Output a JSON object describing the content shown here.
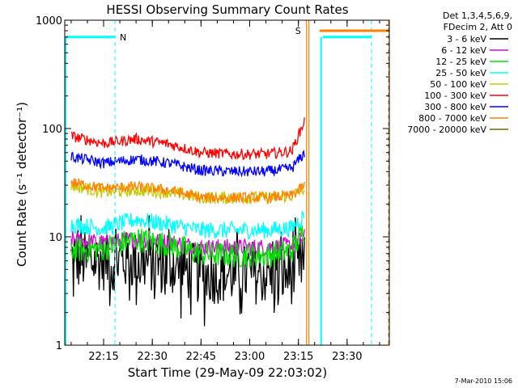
{
  "chart_data": {
    "type": "line",
    "title": "HESSI Observing Summary Count Rates",
    "xlabel": "Start Time (29-May-09 22:03:02)",
    "ylabel": "Count Rate (s⁻¹ detector⁻¹)",
    "ylim": [
      1,
      1000
    ],
    "yscale": "log",
    "xlim": [
      "22:03:02",
      "23:43:00"
    ],
    "x_ticks": [
      "22:15",
      "22:30",
      "22:45",
      "23:00",
      "23:15",
      "23:30"
    ],
    "y_ticks": [
      "1",
      "10",
      "100",
      "1000"
    ],
    "legend": {
      "position": "top-right",
      "header_line1": "Det 1,3,4,5,6,9,",
      "header_line2": "FDecim 2, Att 0"
    },
    "series": [
      {
        "name": "3 - 6 keV",
        "color": "#000000",
        "values": [
          {
            "t": "22:05",
            "v": 6
          },
          {
            "t": "22:15",
            "v": 6
          },
          {
            "t": "22:25",
            "v": 6
          },
          {
            "t": "22:35",
            "v": 5.5
          },
          {
            "t": "22:45",
            "v": 4.5
          },
          {
            "t": "22:55",
            "v": 4.5
          },
          {
            "t": "23:05",
            "v": 4.5
          },
          {
            "t": "23:13",
            "v": 4.5
          },
          {
            "t": "23:17",
            "v": 6
          }
        ]
      },
      {
        "name": "6 - 12 keV",
        "color": "#e000e0",
        "values": [
          {
            "t": "22:05",
            "v": 9.5
          },
          {
            "t": "22:15",
            "v": 8.8
          },
          {
            "t": "22:25",
            "v": 9.5
          },
          {
            "t": "22:35",
            "v": 9
          },
          {
            "t": "22:45",
            "v": 8
          },
          {
            "t": "22:55",
            "v": 8
          },
          {
            "t": "23:05",
            "v": 8
          },
          {
            "t": "23:13",
            "v": 8.3
          },
          {
            "t": "23:17",
            "v": 10
          }
        ]
      },
      {
        "name": "12 - 25 keV",
        "color": "#00e000",
        "values": [
          {
            "t": "22:05",
            "v": 7.5
          },
          {
            "t": "22:15",
            "v": 7.8
          },
          {
            "t": "22:25",
            "v": 9.5
          },
          {
            "t": "22:35",
            "v": 8.5
          },
          {
            "t": "22:45",
            "v": 7
          },
          {
            "t": "22:55",
            "v": 6.8
          },
          {
            "t": "23:05",
            "v": 6.8
          },
          {
            "t": "23:13",
            "v": 7.5
          },
          {
            "t": "23:17",
            "v": 12
          }
        ]
      },
      {
        "name": "25 - 50 keV",
        "color": "#00ffff",
        "values": [
          {
            "t": "22:05",
            "v": 13
          },
          {
            "t": "22:15",
            "v": 12
          },
          {
            "t": "22:25",
            "v": 14.5
          },
          {
            "t": "22:35",
            "v": 13
          },
          {
            "t": "22:45",
            "v": 11.5
          },
          {
            "t": "22:55",
            "v": 11.5
          },
          {
            "t": "23:05",
            "v": 11.5
          },
          {
            "t": "23:13",
            "v": 12
          },
          {
            "t": "23:17",
            "v": 16
          }
        ]
      },
      {
        "name": "50 - 100 keV",
        "color": "#c8c800",
        "values": [
          {
            "t": "22:05",
            "v": 30
          },
          {
            "t": "22:15",
            "v": 26
          },
          {
            "t": "22:25",
            "v": 27
          },
          {
            "t": "22:35",
            "v": 26
          },
          {
            "t": "22:45",
            "v": 23
          },
          {
            "t": "22:55",
            "v": 23
          },
          {
            "t": "23:05",
            "v": 23
          },
          {
            "t": "23:13",
            "v": 24
          },
          {
            "t": "23:17",
            "v": 28
          }
        ]
      },
      {
        "name": "100 - 300 keV",
        "color": "#ff0000",
        "values": [
          {
            "t": "22:05",
            "v": 85
          },
          {
            "t": "22:15",
            "v": 73
          },
          {
            "t": "22:25",
            "v": 80
          },
          {
            "t": "22:35",
            "v": 72
          },
          {
            "t": "22:45",
            "v": 60
          },
          {
            "t": "22:55",
            "v": 58
          },
          {
            "t": "23:05",
            "v": 58
          },
          {
            "t": "23:13",
            "v": 62
          },
          {
            "t": "23:17",
            "v": 120
          }
        ]
      },
      {
        "name": "300 - 800 keV",
        "color": "#0000ff",
        "values": [
          {
            "t": "22:05",
            "v": 55
          },
          {
            "t": "22:15",
            "v": 48
          },
          {
            "t": "22:25",
            "v": 52
          },
          {
            "t": "22:35",
            "v": 48
          },
          {
            "t": "22:45",
            "v": 41
          },
          {
            "t": "22:55",
            "v": 40
          },
          {
            "t": "23:05",
            "v": 40
          },
          {
            "t": "23:13",
            "v": 43
          },
          {
            "t": "23:17",
            "v": 60
          }
        ]
      },
      {
        "name": "800 - 7000 keV",
        "color": "#ff8000",
        "values": [
          {
            "t": "22:05",
            "v": 32
          },
          {
            "t": "22:15",
            "v": 28
          },
          {
            "t": "22:25",
            "v": 29
          },
          {
            "t": "22:35",
            "v": 27
          },
          {
            "t": "22:45",
            "v": 23
          },
          {
            "t": "22:55",
            "v": 23
          },
          {
            "t": "23:05",
            "v": 23
          },
          {
            "t": "23:13",
            "v": 24
          },
          {
            "t": "23:17",
            "v": 30
          }
        ]
      },
      {
        "name": "7000 - 20000 keV",
        "color": "#806000",
        "values": []
      }
    ],
    "annotations": {
      "n_label": "N",
      "s_label": "S",
      "night_marker_color": "#00ffff",
      "saa_marker_color": "#ff8000",
      "night_level": 700,
      "saa_level": 800,
      "night_intervals": [
        [
          "22:03:02",
          "22:18:30"
        ],
        [
          "23:22:00",
          "23:37:30"
        ]
      ],
      "saa_intervals": [
        [
          "23:17:30",
          "23:21:30"
        ],
        [
          "23:21:30",
          "23:43:00"
        ]
      ]
    },
    "timestamp": "7-Mar-2010 15:06"
  }
}
